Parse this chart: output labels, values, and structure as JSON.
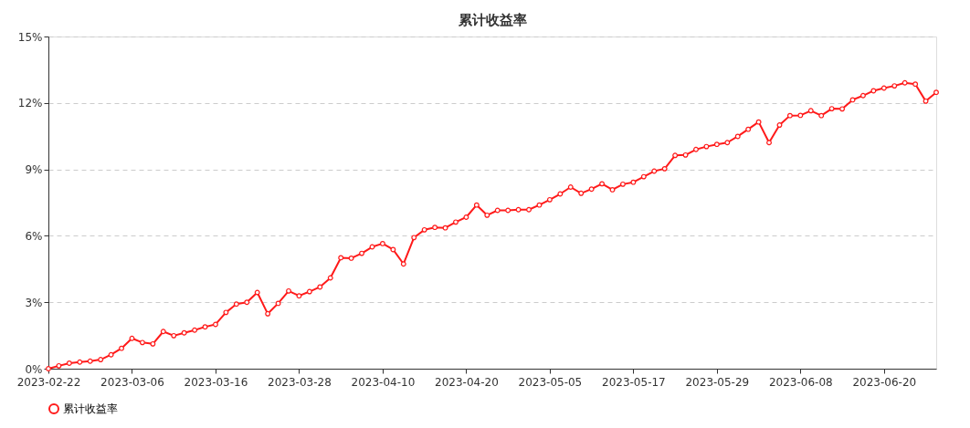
{
  "chart_data": {
    "type": "line",
    "title": "累计收益率",
    "categories": [
      "2023-02-22",
      null,
      null,
      null,
      null,
      null,
      null,
      null,
      "2023-03-06",
      null,
      null,
      null,
      null,
      null,
      null,
      null,
      "2023-03-16",
      null,
      null,
      null,
      null,
      null,
      null,
      null,
      "2023-03-28",
      null,
      null,
      null,
      null,
      null,
      null,
      null,
      "2023-04-10",
      null,
      null,
      null,
      null,
      null,
      null,
      null,
      "2023-04-20",
      null,
      null,
      null,
      null,
      null,
      null,
      null,
      "2023-05-05",
      null,
      null,
      null,
      null,
      null,
      null,
      null,
      "2023-05-17",
      null,
      null,
      null,
      null,
      null,
      null,
      null,
      "2023-05-29",
      null,
      null,
      null,
      null,
      null,
      null,
      null,
      "2023-06-08",
      null,
      null,
      null,
      null,
      null,
      null,
      null,
      "2023-06-20",
      null,
      null,
      null,
      null,
      null
    ],
    "series": [
      {
        "name": "累计收益率",
        "color": "#ff1a1a",
        "values": [
          0,
          0.13,
          0.25,
          0.3,
          0.34,
          0.41,
          0.63,
          0.92,
          1.37,
          1.18,
          1.12,
          1.68,
          1.49,
          1.62,
          1.74,
          1.89,
          2.0,
          2.54,
          2.92,
          3.0,
          3.44,
          2.48,
          2.95,
          3.51,
          3.29,
          3.48,
          3.69,
          4.1,
          5.01,
          4.99,
          5.21,
          5.5,
          5.65,
          5.38,
          4.73,
          5.92,
          6.27,
          6.38,
          6.36,
          6.62,
          6.84,
          7.39,
          6.93,
          7.15,
          7.15,
          7.18,
          7.18,
          7.39,
          7.63,
          7.89,
          8.2,
          7.92,
          8.11,
          8.35,
          8.08,
          8.33,
          8.42,
          8.67,
          8.92,
          9.03,
          9.63,
          9.65,
          9.9,
          10.03,
          10.13,
          10.21,
          10.49,
          10.81,
          11.14,
          10.21,
          11.0,
          11.43,
          11.44,
          11.65,
          11.43,
          11.74,
          11.73,
          12.14,
          12.33,
          12.55,
          12.67,
          12.77,
          12.91,
          12.85,
          12.08,
          12.48
        ]
      }
    ],
    "ylim": [
      0,
      15
    ],
    "yticks": [
      {
        "value": 0,
        "label": "0%"
      },
      {
        "value": 3,
        "label": "3%"
      },
      {
        "value": 6,
        "label": "6%"
      },
      {
        "value": 9,
        "label": "9%"
      },
      {
        "value": 12,
        "label": "12%"
      },
      {
        "value": 15,
        "label": "15%"
      }
    ],
    "grid": "y",
    "legend": "bottom",
    "marker": "circle",
    "line_style": "solid"
  }
}
